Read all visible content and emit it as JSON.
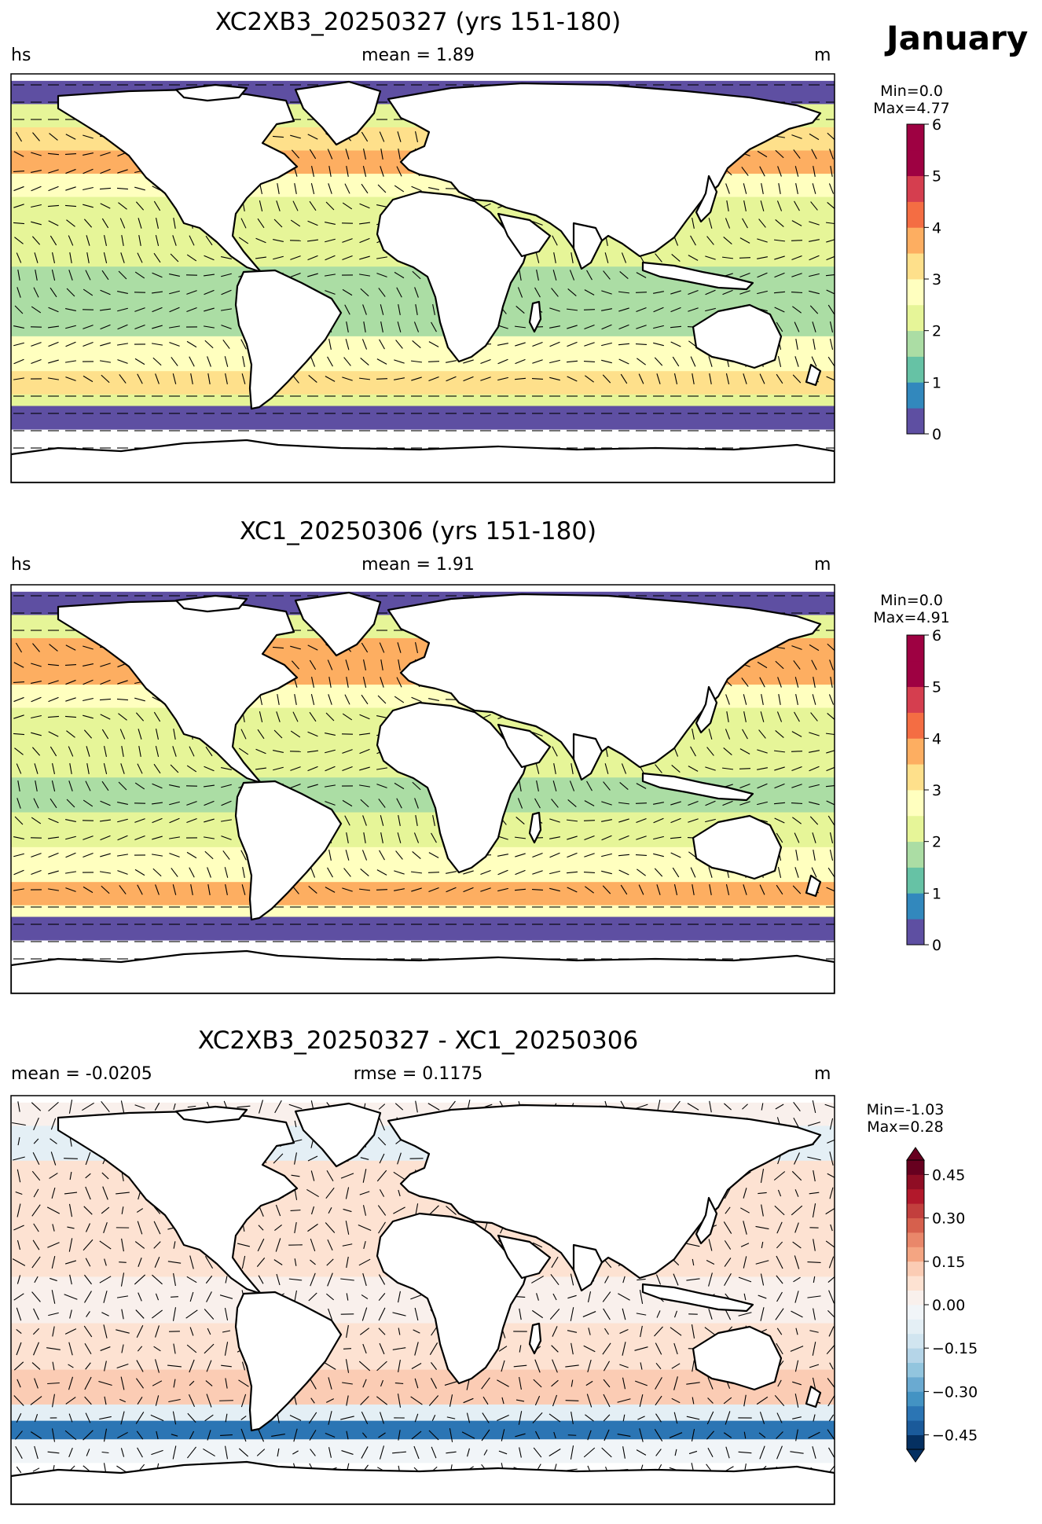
{
  "month": "January",
  "panels": [
    {
      "title": "XC2XB3_20250327 (yrs 151-180)",
      "left_label": "hs",
      "center_label": "mean = 1.89",
      "right_label": "m",
      "cb_min": "Min=0.0",
      "cb_max": "Max=4.77"
    },
    {
      "title": "XC1_20250306 (yrs 151-180)",
      "left_label": "hs",
      "center_label": "mean = 1.91",
      "right_label": "m",
      "cb_min": "Min=0.0",
      "cb_max": "Max=4.91"
    },
    {
      "title": "XC2XB3_20250327 - XC1_20250306",
      "left_label": "mean = -0.0205",
      "center_label": "rmse = 0.1175",
      "right_label": "m",
      "cb_min": "Min=-1.03",
      "cb_max": "Max=0.28"
    }
  ],
  "chart_data": [
    {
      "type": "heatmap",
      "title": "XC2XB3_20250327 (yrs 151-180)",
      "variable": "hs",
      "units": "m",
      "colormap": "Spectral_r",
      "colorbar_levels": [
        0,
        0.5,
        1,
        1.5,
        2,
        2.5,
        3,
        3.5,
        4,
        4.5,
        5,
        5.5,
        6
      ],
      "colorbar_ticks": [
        "0",
        "1",
        "2",
        "3",
        "4",
        "5",
        "6"
      ],
      "colors": [
        "#5e4fa2",
        "#3288bd",
        "#66c2a5",
        "#abdda4",
        "#e6f598",
        "#ffffbf",
        "#fee08b",
        "#fdae61",
        "#f46d43",
        "#d53e4f",
        "#9e0142",
        "#9e0142"
      ],
      "bands": [
        {
          "lat": "85N-75N",
          "value": 0.2
        },
        {
          "lat": "75N-65N",
          "value": 2.0
        },
        {
          "lat": "65N-55N",
          "value": 3.3
        },
        {
          "lat": "55N-45N",
          "value": 3.6
        },
        {
          "lat": "45N-35N",
          "value": 2.8
        },
        {
          "lat": "35N-20N",
          "value": 2.4
        },
        {
          "lat": "20N-5N",
          "value": 2.1
        },
        {
          "lat": "5N-10S",
          "value": 1.6
        },
        {
          "lat": "10S-25S",
          "value": 1.8
        },
        {
          "lat": "25S-40S",
          "value": 2.6
        },
        {
          "lat": "40S-50S",
          "value": 3.4
        },
        {
          "lat": "50S-55S",
          "value": 2.4
        },
        {
          "lat": "55S-65S",
          "value": 0.3
        }
      ]
    },
    {
      "type": "heatmap",
      "title": "XC1_20250306 (yrs 151-180)",
      "variable": "hs",
      "units": "m",
      "colormap": "Spectral_r",
      "colorbar_levels": [
        0,
        0.5,
        1,
        1.5,
        2,
        2.5,
        3,
        3.5,
        4,
        4.5,
        5,
        5.5,
        6
      ],
      "colorbar_ticks": [
        "0",
        "1",
        "2",
        "3",
        "4",
        "5",
        "6"
      ],
      "colors": [
        "#5e4fa2",
        "#3288bd",
        "#66c2a5",
        "#abdda4",
        "#e6f598",
        "#ffffbf",
        "#fee08b",
        "#fdae61",
        "#f46d43",
        "#d53e4f",
        "#9e0142",
        "#9e0142"
      ],
      "bands": [
        {
          "lat": "85N-75N",
          "value": 0.2
        },
        {
          "lat": "75N-65N",
          "value": 2.2
        },
        {
          "lat": "65N-55N",
          "value": 3.5
        },
        {
          "lat": "55N-45N",
          "value": 3.8
        },
        {
          "lat": "45N-35N",
          "value": 2.8
        },
        {
          "lat": "35N-20N",
          "value": 2.3
        },
        {
          "lat": "20N-5N",
          "value": 2.0
        },
        {
          "lat": "5N-10S",
          "value": 1.7
        },
        {
          "lat": "10S-25S",
          "value": 2.0
        },
        {
          "lat": "25S-40S",
          "value": 2.7
        },
        {
          "lat": "40S-50S",
          "value": 3.6
        },
        {
          "lat": "50S-55S",
          "value": 2.8
        },
        {
          "lat": "55S-65S",
          "value": 0.4
        }
      ]
    },
    {
      "type": "heatmap",
      "title": "XC2XB3_20250327 - XC1_20250306",
      "units": "m",
      "colormap": "RdBu_r",
      "colorbar_levels": [
        -0.5,
        -0.45,
        -0.4,
        -0.35,
        -0.3,
        -0.25,
        -0.2,
        -0.15,
        -0.1,
        -0.05,
        0,
        0.05,
        0.1,
        0.15,
        0.2,
        0.25,
        0.3,
        0.35,
        0.4,
        0.45,
        0.5
      ],
      "colorbar_ticks": [
        "−0.45",
        "−0.30",
        "−0.15",
        "0.00",
        "0.15",
        "0.30",
        "0.45"
      ],
      "colors": [
        "#053061",
        "#1a5a9a",
        "#2b75b4",
        "#4393c3",
        "#6aaad1",
        "#92c5de",
        "#b5d5e8",
        "#d1e5f0",
        "#e4eff5",
        "#f1f5f8",
        "#f9f0ec",
        "#fde2d2",
        "#fbccb4",
        "#f4a582",
        "#e9876a",
        "#d6604d",
        "#c23f3d",
        "#b2182b",
        "#8f0d24",
        "#67001f"
      ],
      "bands": [
        {
          "lat": "85N-75N",
          "value": 0.0
        },
        {
          "lat": "75N-60N",
          "value": -0.1
        },
        {
          "lat": "60N-45N",
          "value": 0.05
        },
        {
          "lat": "45N-30N",
          "value": 0.08
        },
        {
          "lat": "30N-10N",
          "value": 0.06
        },
        {
          "lat": "10N-10S",
          "value": 0.0
        },
        {
          "lat": "10S-30S",
          "value": 0.07
        },
        {
          "lat": "30S-45S",
          "value": 0.1
        },
        {
          "lat": "45S-52S",
          "value": -0.1
        },
        {
          "lat": "52S-60S",
          "value": -0.4
        },
        {
          "lat": "60S-70S",
          "value": -0.05
        }
      ]
    }
  ]
}
